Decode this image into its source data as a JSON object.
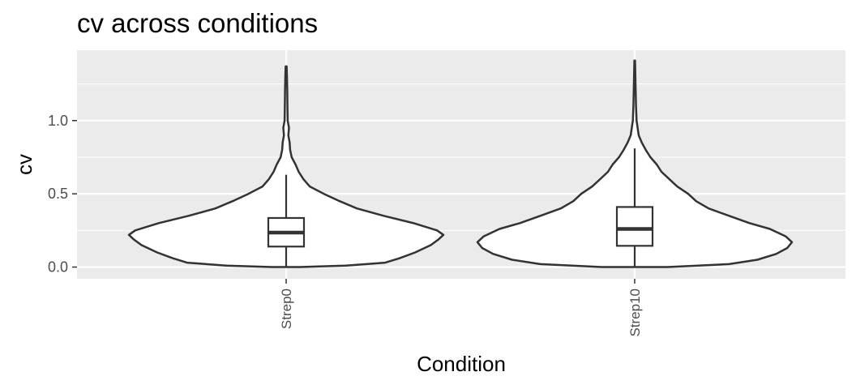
{
  "chart_data": {
    "type": "violin",
    "title": "cv across conditions",
    "xlabel": "Condition",
    "ylabel": "cv",
    "categories": [
      "Strep0",
      "Strep10"
    ],
    "ylim": [
      -0.08,
      1.48
    ],
    "y_ticks": [
      {
        "value": 0.0,
        "label": "0.0"
      },
      {
        "value": 0.5,
        "label": "0.5"
      },
      {
        "value": 1.0,
        "label": "1.0"
      }
    ],
    "grid": true,
    "legend": "none",
    "colors": {
      "panel": "#ebebeb",
      "grid": "#ffffff",
      "outline": "#333333",
      "fill": "#ffffff"
    },
    "box_stats": [
      {
        "category": "Strep0",
        "q1": 0.14,
        "median": 0.235,
        "q3": 0.335,
        "whisker_low": 0.0,
        "whisker_high": 0.63
      },
      {
        "category": "Strep10",
        "q1": 0.145,
        "median": 0.26,
        "q3": 0.41,
        "whisker_low": 0.0,
        "whisker_high": 0.81
      }
    ],
    "violins": [
      {
        "category": "Strep0",
        "y_min": 0.0,
        "y_max": 1.37,
        "profile": [
          [
            0.0,
            0.09
          ],
          [
            0.01,
            0.38
          ],
          [
            0.03,
            0.63
          ],
          [
            0.06,
            0.72
          ],
          [
            0.1,
            0.82
          ],
          [
            0.15,
            0.92
          ],
          [
            0.19,
            0.97
          ],
          [
            0.22,
            1.0
          ],
          [
            0.25,
            0.96
          ],
          [
            0.3,
            0.81
          ],
          [
            0.35,
            0.62
          ],
          [
            0.4,
            0.45
          ],
          [
            0.45,
            0.34
          ],
          [
            0.5,
            0.24
          ],
          [
            0.55,
            0.15
          ],
          [
            0.6,
            0.11
          ],
          [
            0.65,
            0.08
          ],
          [
            0.7,
            0.06
          ],
          [
            0.75,
            0.035
          ],
          [
            0.8,
            0.025
          ],
          [
            0.85,
            0.022
          ],
          [
            0.9,
            0.014
          ],
          [
            0.95,
            0.018
          ],
          [
            1.0,
            0.01
          ],
          [
            1.1,
            0.008
          ],
          [
            1.2,
            0.007
          ],
          [
            1.3,
            0.005
          ],
          [
            1.37,
            0.003
          ]
        ]
      },
      {
        "category": "Strep10",
        "y_min": 0.0,
        "y_max": 1.41,
        "profile": [
          [
            0.0,
            0.21
          ],
          [
            0.02,
            0.6
          ],
          [
            0.05,
            0.78
          ],
          [
            0.09,
            0.9
          ],
          [
            0.13,
            0.97
          ],
          [
            0.17,
            1.0
          ],
          [
            0.21,
            0.96
          ],
          [
            0.26,
            0.86
          ],
          [
            0.3,
            0.73
          ],
          [
            0.35,
            0.6
          ],
          [
            0.4,
            0.47
          ],
          [
            0.45,
            0.39
          ],
          [
            0.5,
            0.34
          ],
          [
            0.55,
            0.27
          ],
          [
            0.6,
            0.22
          ],
          [
            0.65,
            0.17
          ],
          [
            0.7,
            0.14
          ],
          [
            0.75,
            0.1
          ],
          [
            0.8,
            0.07
          ],
          [
            0.85,
            0.045
          ],
          [
            0.9,
            0.025
          ],
          [
            1.0,
            0.012
          ],
          [
            1.1,
            0.008
          ],
          [
            1.2,
            0.006
          ],
          [
            1.3,
            0.004
          ],
          [
            1.41,
            0.002
          ]
        ]
      }
    ]
  }
}
